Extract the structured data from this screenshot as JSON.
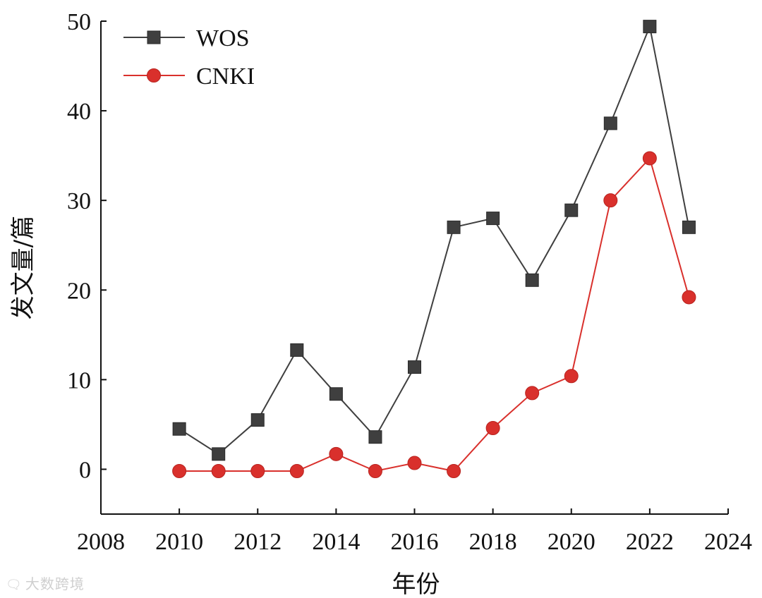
{
  "chart_data": {
    "type": "line",
    "title": "",
    "xlabel": "年份",
    "ylabel": "发文量/篇",
    "xlim": [
      2008,
      2024
    ],
    "ylim": [
      -5,
      50
    ],
    "x_ticks": [
      2008,
      2010,
      2012,
      2014,
      2016,
      2018,
      2020,
      2022,
      2024
    ],
    "y_ticks": [
      0,
      10,
      20,
      30,
      40,
      50
    ],
    "grid": false,
    "legend_position": "top-left",
    "x": [
      2010,
      2011,
      2012,
      2013,
      2014,
      2015,
      2016,
      2017,
      2018,
      2019,
      2020,
      2021,
      2022,
      2023
    ],
    "series": [
      {
        "name": "WOS",
        "marker": "square",
        "color": "#3f3f3f",
        "line_color": "#3f3f3f",
        "values": [
          4.5,
          1.7,
          5.5,
          13.3,
          8.4,
          3.6,
          11.4,
          27,
          28,
          21.1,
          28.9,
          38.6,
          49.4,
          27
        ]
      },
      {
        "name": "CNKI",
        "marker": "circle",
        "color": "#d9302c",
        "line_color": "#d9302c",
        "values": [
          -0.2,
          -0.2,
          -0.2,
          -0.2,
          1.7,
          -0.2,
          0.7,
          -0.2,
          4.6,
          8.5,
          10.4,
          30,
          34.7,
          19.2
        ]
      }
    ]
  },
  "watermark": {
    "text": "大数跨境",
    "icon": "brand-logo-icon"
  }
}
